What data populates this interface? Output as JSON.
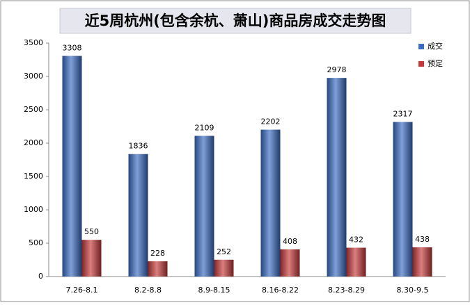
{
  "chart_data": {
    "type": "bar",
    "title": "近5周杭州(包含余杭、萧山)商品房成交走势图",
    "categories": [
      "7.26-8.1",
      "8.2-8.8",
      "8.9-8.15",
      "8.16-8.22",
      "8.23-8.29",
      "8.30-9.5"
    ],
    "series": [
      {
        "name": "成交",
        "color": "#3a6cc4",
        "values": [
          3308,
          1836,
          2109,
          2202,
          2978,
          2317
        ]
      },
      {
        "name": "预定",
        "color": "#c8383a",
        "values": [
          550,
          228,
          252,
          408,
          432,
          438
        ]
      }
    ],
    "ylim": [
      0,
      3500
    ],
    "yticks": [
      0,
      500,
      1000,
      1500,
      2000,
      2500,
      3000,
      3500
    ],
    "grid": false,
    "legend": "top-right"
  }
}
